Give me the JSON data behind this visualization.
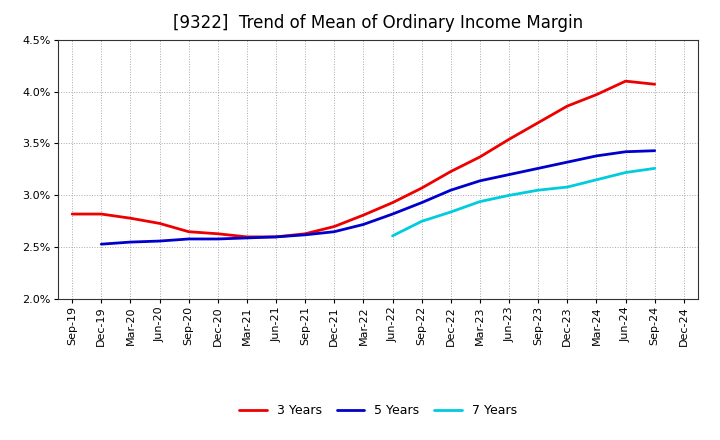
{
  "title": "[9322]  Trend of Mean of Ordinary Income Margin",
  "ylim": [
    0.02,
    0.045
  ],
  "yticks": [
    0.02,
    0.025,
    0.03,
    0.035,
    0.04,
    0.045
  ],
  "ytick_labels": [
    "2.0%",
    "2.5%",
    "3.0%",
    "3.5%",
    "4.0%",
    "4.5%"
  ],
  "x_labels": [
    "Sep-19",
    "Dec-19",
    "Mar-20",
    "Jun-20",
    "Sep-20",
    "Dec-20",
    "Mar-21",
    "Jun-21",
    "Sep-21",
    "Dec-21",
    "Mar-22",
    "Jun-22",
    "Sep-22",
    "Dec-22",
    "Mar-23",
    "Jun-23",
    "Sep-23",
    "Dec-23",
    "Mar-24",
    "Jun-24",
    "Sep-24",
    "Dec-24"
  ],
  "series": {
    "3 Years": {
      "color": "#EE0000",
      "values": [
        0.0282,
        0.0282,
        0.0278,
        0.0273,
        0.0265,
        0.0263,
        0.026,
        0.026,
        0.0263,
        0.027,
        0.0281,
        0.0293,
        0.0307,
        0.0323,
        0.0337,
        0.0354,
        0.037,
        0.0386,
        0.0397,
        0.041,
        0.0407,
        null
      ]
    },
    "5 Years": {
      "color": "#0000CC",
      "values": [
        null,
        0.0253,
        0.0255,
        0.0256,
        0.0258,
        0.0258,
        0.0259,
        0.026,
        0.0262,
        0.0265,
        0.0272,
        0.0282,
        0.0293,
        0.0305,
        0.0314,
        0.032,
        0.0326,
        0.0332,
        0.0338,
        0.0342,
        0.0343,
        null
      ]
    },
    "7 Years": {
      "color": "#00CCDD",
      "values": [
        null,
        null,
        null,
        null,
        null,
        null,
        null,
        null,
        null,
        null,
        null,
        0.0261,
        0.0275,
        0.0284,
        0.0294,
        0.03,
        0.0305,
        0.0308,
        0.0315,
        0.0322,
        0.0326,
        null
      ]
    },
    "10 Years": {
      "color": "#008800",
      "values": [
        null,
        null,
        null,
        null,
        null,
        null,
        null,
        null,
        null,
        null,
        null,
        null,
        null,
        null,
        null,
        null,
        null,
        null,
        null,
        null,
        null,
        null
      ]
    }
  },
  "background_color": "#ffffff",
  "plot_bg_color": "#ffffff",
  "grid_color": "#aaaaaa",
  "title_fontsize": 12,
  "tick_fontsize": 8,
  "legend_fontsize": 9
}
